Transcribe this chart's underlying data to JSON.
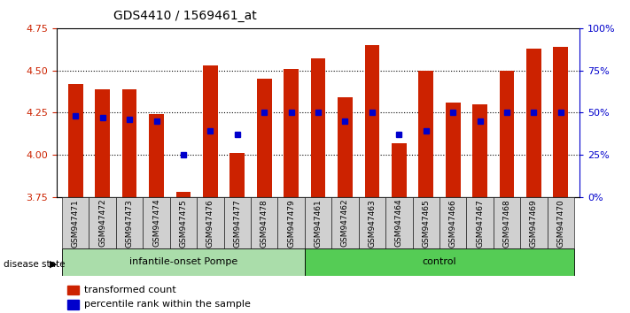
{
  "title": "GDS4410 / 1569461_at",
  "samples": [
    "GSM947471",
    "GSM947472",
    "GSM947473",
    "GSM947474",
    "GSM947475",
    "GSM947476",
    "GSM947477",
    "GSM947478",
    "GSM947479",
    "GSM947461",
    "GSM947462",
    "GSM947463",
    "GSM947464",
    "GSM947465",
    "GSM947466",
    "GSM947467",
    "GSM947468",
    "GSM947469",
    "GSM947470"
  ],
  "bar_values": [
    4.42,
    4.39,
    4.39,
    4.24,
    3.78,
    4.53,
    4.01,
    4.45,
    4.51,
    4.57,
    4.34,
    4.65,
    4.07,
    4.5,
    4.31,
    4.3,
    4.5,
    4.63,
    4.64
  ],
  "blue_marker_values": [
    4.23,
    4.22,
    4.21,
    4.2,
    4.0,
    4.14,
    4.12,
    4.25,
    4.25,
    4.25,
    4.2,
    4.25,
    4.12,
    4.14,
    4.25,
    4.2,
    4.25,
    4.25,
    4.25
  ],
  "groups": [
    {
      "label": "infantile-onset Pompe",
      "start": 0,
      "end": 9,
      "color": "#aaddaa"
    },
    {
      "label": "control",
      "start": 9,
      "end": 19,
      "color": "#55cc55"
    }
  ],
  "ymin": 3.75,
  "ymax": 4.75,
  "yticks_left": [
    3.75,
    4.0,
    4.25,
    4.5,
    4.75
  ],
  "yticks_right": [
    0,
    25,
    50,
    75,
    100
  ],
  "bar_color": "#cc2200",
  "marker_color": "#0000cc",
  "bar_bottom": 3.75,
  "background_color": "#ffffff",
  "plot_bg_color": "#ffffff",
  "tick_label_fontsize": 6.5,
  "title_fontsize": 10
}
